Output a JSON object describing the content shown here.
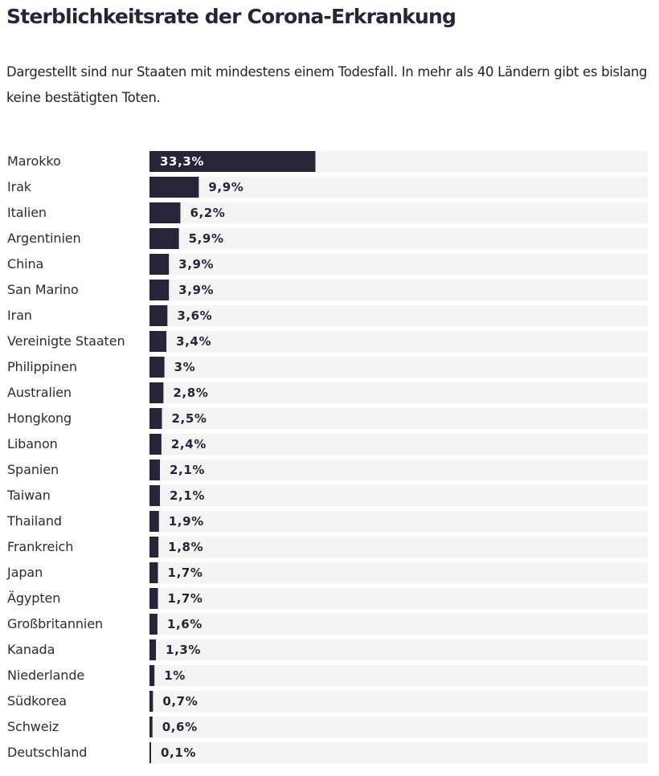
{
  "header": {
    "title": "Sterblichkeitsrate der Corona-Erkrankung",
    "subtitle": "Dargestellt sind nur Staaten mit mindestens einem Todesfall. In mehr als 40 Ländern gibt es bislang keine bestätigten Toten."
  },
  "colors": {
    "bar": "#262638",
    "track": "#f4f4f4",
    "label_on_dark": "#ffffff",
    "label_on_light": "#262638"
  },
  "chart_data": {
    "type": "bar",
    "orientation": "horizontal",
    "title": "Sterblichkeitsrate der Corona-Erkrankung",
    "subtitle": "Dargestellt sind nur Staaten mit mindestens einem Todesfall. In mehr als 40 Ländern gibt es bislang keine bestätigten Toten.",
    "unit": "%",
    "xlim": [
      0,
      100
    ],
    "grid": false,
    "categories": [
      "Marokko",
      "Irak",
      "Italien",
      "Argentinien",
      "China",
      "San Marino",
      "Iran",
      "Vereinigte Staaten",
      "Philippinen",
      "Australien",
      "Hongkong",
      "Libanon",
      "Spanien",
      "Taiwan",
      "Thailand",
      "Frankreich",
      "Japan",
      "Ägypten",
      "Großbritannien",
      "Kanada",
      "Niederlande",
      "Südkorea",
      "Schweiz",
      "Deutschland"
    ],
    "values": [
      33.3,
      9.9,
      6.2,
      5.9,
      3.9,
      3.9,
      3.6,
      3.4,
      3.0,
      2.8,
      2.5,
      2.4,
      2.1,
      2.1,
      1.9,
      1.8,
      1.7,
      1.7,
      1.6,
      1.3,
      1.0,
      0.7,
      0.6,
      0.1
    ],
    "value_labels": [
      "33,3%",
      "9,9%",
      "6,2%",
      "5,9%",
      "3,9%",
      "3,9%",
      "3,6%",
      "3,4%",
      "3%",
      "2,8%",
      "2,5%",
      "2,4%",
      "2,1%",
      "2,1%",
      "1,9%",
      "1,8%",
      "1,7%",
      "1,7%",
      "1,6%",
      "1,3%",
      "1%",
      "0,7%",
      "0,6%",
      "0,1%"
    ]
  }
}
